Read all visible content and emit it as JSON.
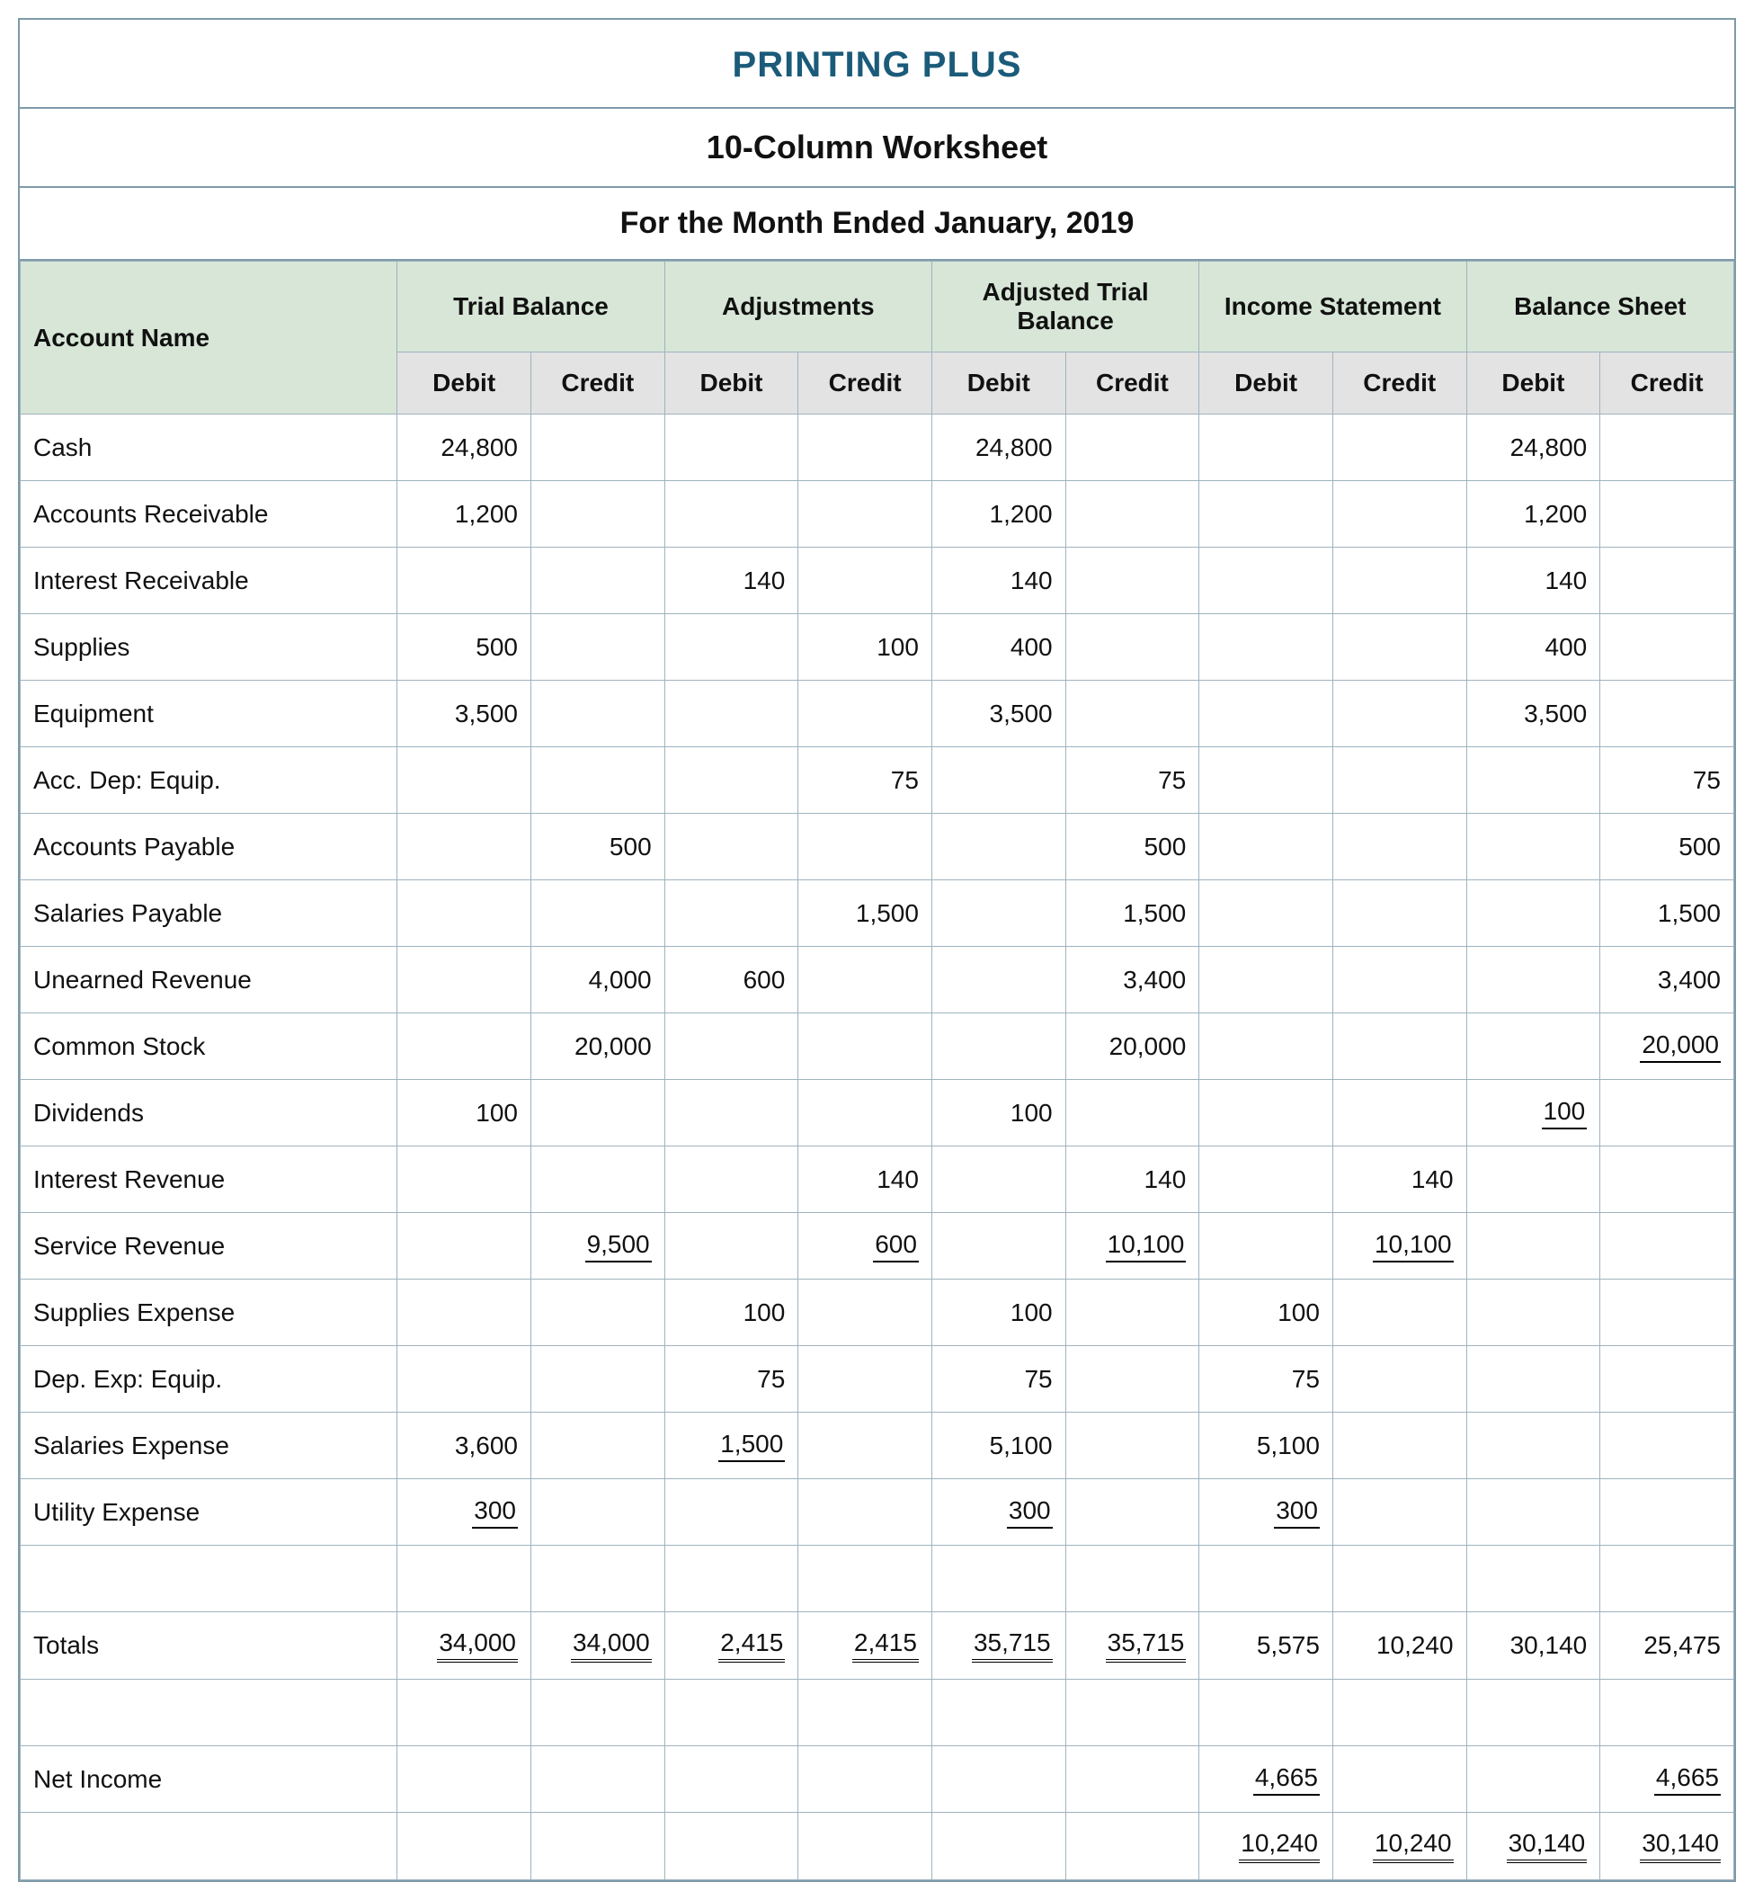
{
  "header": {
    "company": "PRINTING PLUS",
    "worksheet": "10-Column Worksheet",
    "period": "For the Month Ended January, 2019"
  },
  "column_groups": [
    "Account Name",
    "Trial Balance",
    "Adjustments",
    "Adjusted Trial Balance",
    "Income Statement",
    "Balance Sheet"
  ],
  "dc_labels": {
    "debit": "Debit",
    "credit": "Credit"
  },
  "colors": {
    "outer_border": "#7e9aa8",
    "cell_border": "#9fb3be",
    "group_header_bg": "#d7e6d7",
    "dc_header_bg": "#e3e3e3",
    "company_text": "#1b5b7a",
    "background": "#ffffff"
  },
  "typography": {
    "company_fontsize_pt": 30,
    "subtitle_fontsize_pt": 27,
    "body_fontsize_pt": 21,
    "font_family": "Segoe UI / Arial"
  },
  "column_widths_pct": {
    "account_name": 22,
    "number_col": 7.8
  },
  "underline_legend": {
    "u1": "single underline (subtotal boundary)",
    "u2": "double underline (grand total)"
  },
  "rows": [
    {
      "label": "Cash",
      "cells": [
        {
          "v": "24,800"
        },
        {
          "v": ""
        },
        {
          "v": ""
        },
        {
          "v": ""
        },
        {
          "v": "24,800"
        },
        {
          "v": ""
        },
        {
          "v": ""
        },
        {
          "v": ""
        },
        {
          "v": "24,800"
        },
        {
          "v": ""
        }
      ]
    },
    {
      "label": "Accounts Receivable",
      "cells": [
        {
          "v": "1,200"
        },
        {
          "v": ""
        },
        {
          "v": ""
        },
        {
          "v": ""
        },
        {
          "v": "1,200"
        },
        {
          "v": ""
        },
        {
          "v": ""
        },
        {
          "v": ""
        },
        {
          "v": "1,200"
        },
        {
          "v": ""
        }
      ]
    },
    {
      "label": "Interest Receivable",
      "cells": [
        {
          "v": ""
        },
        {
          "v": ""
        },
        {
          "v": "140"
        },
        {
          "v": ""
        },
        {
          "v": "140"
        },
        {
          "v": ""
        },
        {
          "v": ""
        },
        {
          "v": ""
        },
        {
          "v": "140"
        },
        {
          "v": ""
        }
      ]
    },
    {
      "label": "Supplies",
      "cells": [
        {
          "v": "500"
        },
        {
          "v": ""
        },
        {
          "v": ""
        },
        {
          "v": "100"
        },
        {
          "v": "400"
        },
        {
          "v": ""
        },
        {
          "v": ""
        },
        {
          "v": ""
        },
        {
          "v": "400"
        },
        {
          "v": ""
        }
      ]
    },
    {
      "label": "Equipment",
      "cells": [
        {
          "v": "3,500"
        },
        {
          "v": ""
        },
        {
          "v": ""
        },
        {
          "v": ""
        },
        {
          "v": "3,500"
        },
        {
          "v": ""
        },
        {
          "v": ""
        },
        {
          "v": ""
        },
        {
          "v": "3,500"
        },
        {
          "v": ""
        }
      ]
    },
    {
      "label": "Acc. Dep: Equip.",
      "cells": [
        {
          "v": ""
        },
        {
          "v": ""
        },
        {
          "v": ""
        },
        {
          "v": "75"
        },
        {
          "v": ""
        },
        {
          "v": "75"
        },
        {
          "v": ""
        },
        {
          "v": ""
        },
        {
          "v": ""
        },
        {
          "v": "75"
        }
      ]
    },
    {
      "label": "Accounts Payable",
      "cells": [
        {
          "v": ""
        },
        {
          "v": "500"
        },
        {
          "v": ""
        },
        {
          "v": ""
        },
        {
          "v": ""
        },
        {
          "v": "500"
        },
        {
          "v": ""
        },
        {
          "v": ""
        },
        {
          "v": ""
        },
        {
          "v": "500"
        }
      ]
    },
    {
      "label": "Salaries Payable",
      "cells": [
        {
          "v": ""
        },
        {
          "v": ""
        },
        {
          "v": ""
        },
        {
          "v": "1,500"
        },
        {
          "v": ""
        },
        {
          "v": "1,500"
        },
        {
          "v": ""
        },
        {
          "v": ""
        },
        {
          "v": ""
        },
        {
          "v": "1,500"
        }
      ]
    },
    {
      "label": "Unearned Revenue",
      "cells": [
        {
          "v": ""
        },
        {
          "v": "4,000"
        },
        {
          "v": "600"
        },
        {
          "v": ""
        },
        {
          "v": ""
        },
        {
          "v": "3,400"
        },
        {
          "v": ""
        },
        {
          "v": ""
        },
        {
          "v": ""
        },
        {
          "v": "3,400"
        }
      ]
    },
    {
      "label": "Common Stock",
      "cells": [
        {
          "v": ""
        },
        {
          "v": "20,000"
        },
        {
          "v": ""
        },
        {
          "v": ""
        },
        {
          "v": ""
        },
        {
          "v": "20,000"
        },
        {
          "v": ""
        },
        {
          "v": ""
        },
        {
          "v": ""
        },
        {
          "v": "20,000",
          "u": "u1"
        }
      ]
    },
    {
      "label": "Dividends",
      "cells": [
        {
          "v": "100"
        },
        {
          "v": ""
        },
        {
          "v": ""
        },
        {
          "v": ""
        },
        {
          "v": "100"
        },
        {
          "v": ""
        },
        {
          "v": ""
        },
        {
          "v": ""
        },
        {
          "v": "100",
          "u": "u1"
        },
        {
          "v": ""
        }
      ]
    },
    {
      "label": "Interest Revenue",
      "cells": [
        {
          "v": ""
        },
        {
          "v": ""
        },
        {
          "v": ""
        },
        {
          "v": "140"
        },
        {
          "v": ""
        },
        {
          "v": "140"
        },
        {
          "v": ""
        },
        {
          "v": "140"
        },
        {
          "v": ""
        },
        {
          "v": ""
        }
      ]
    },
    {
      "label": "Service Revenue",
      "cells": [
        {
          "v": ""
        },
        {
          "v": "9,500",
          "u": "u1"
        },
        {
          "v": ""
        },
        {
          "v": "600",
          "u": "u1"
        },
        {
          "v": ""
        },
        {
          "v": "10,100",
          "u": "u1"
        },
        {
          "v": ""
        },
        {
          "v": "10,100",
          "u": "u1"
        },
        {
          "v": ""
        },
        {
          "v": ""
        }
      ]
    },
    {
      "label": "Supplies Expense",
      "cells": [
        {
          "v": ""
        },
        {
          "v": ""
        },
        {
          "v": "100"
        },
        {
          "v": ""
        },
        {
          "v": "100"
        },
        {
          "v": ""
        },
        {
          "v": "100"
        },
        {
          "v": ""
        },
        {
          "v": ""
        },
        {
          "v": ""
        }
      ]
    },
    {
      "label": "Dep. Exp: Equip.",
      "cells": [
        {
          "v": ""
        },
        {
          "v": ""
        },
        {
          "v": "75"
        },
        {
          "v": ""
        },
        {
          "v": "75"
        },
        {
          "v": ""
        },
        {
          "v": "75"
        },
        {
          "v": ""
        },
        {
          "v": ""
        },
        {
          "v": ""
        }
      ]
    },
    {
      "label": "Salaries Expense",
      "cells": [
        {
          "v": "3,600"
        },
        {
          "v": ""
        },
        {
          "v": "1,500",
          "u": "u1"
        },
        {
          "v": ""
        },
        {
          "v": "5,100"
        },
        {
          "v": ""
        },
        {
          "v": "5,100"
        },
        {
          "v": ""
        },
        {
          "v": ""
        },
        {
          "v": ""
        }
      ]
    },
    {
      "label": "Utility Expense",
      "cells": [
        {
          "v": "300",
          "u": "u1"
        },
        {
          "v": ""
        },
        {
          "v": ""
        },
        {
          "v": ""
        },
        {
          "v": "300",
          "u": "u1"
        },
        {
          "v": ""
        },
        {
          "v": "300",
          "u": "u1"
        },
        {
          "v": ""
        },
        {
          "v": ""
        },
        {
          "v": ""
        }
      ]
    },
    {
      "label": "",
      "cells": [
        {
          "v": ""
        },
        {
          "v": ""
        },
        {
          "v": ""
        },
        {
          "v": ""
        },
        {
          "v": ""
        },
        {
          "v": ""
        },
        {
          "v": ""
        },
        {
          "v": ""
        },
        {
          "v": ""
        },
        {
          "v": ""
        }
      ]
    },
    {
      "label": "Totals",
      "cells": [
        {
          "v": "34,000",
          "u": "u2"
        },
        {
          "v": "34,000",
          "u": "u2"
        },
        {
          "v": "2,415",
          "u": "u2"
        },
        {
          "v": "2,415",
          "u": "u2"
        },
        {
          "v": "35,715",
          "u": "u2"
        },
        {
          "v": "35,715",
          "u": "u2"
        },
        {
          "v": "5,575"
        },
        {
          "v": "10,240"
        },
        {
          "v": "30,140"
        },
        {
          "v": "25,475"
        }
      ]
    },
    {
      "label": "",
      "cells": [
        {
          "v": ""
        },
        {
          "v": ""
        },
        {
          "v": ""
        },
        {
          "v": ""
        },
        {
          "v": ""
        },
        {
          "v": ""
        },
        {
          "v": ""
        },
        {
          "v": ""
        },
        {
          "v": ""
        },
        {
          "v": ""
        }
      ]
    },
    {
      "label": "Net Income",
      "cells": [
        {
          "v": ""
        },
        {
          "v": ""
        },
        {
          "v": ""
        },
        {
          "v": ""
        },
        {
          "v": ""
        },
        {
          "v": ""
        },
        {
          "v": "4,665",
          "u": "u1"
        },
        {
          "v": ""
        },
        {
          "v": ""
        },
        {
          "v": "4,665",
          "u": "u1"
        }
      ]
    },
    {
      "label": "",
      "cells": [
        {
          "v": ""
        },
        {
          "v": ""
        },
        {
          "v": ""
        },
        {
          "v": ""
        },
        {
          "v": ""
        },
        {
          "v": ""
        },
        {
          "v": "10,240",
          "u": "u2"
        },
        {
          "v": "10,240",
          "u": "u2"
        },
        {
          "v": "30,140",
          "u": "u2"
        },
        {
          "v": "30,140",
          "u": "u2"
        }
      ]
    }
  ]
}
